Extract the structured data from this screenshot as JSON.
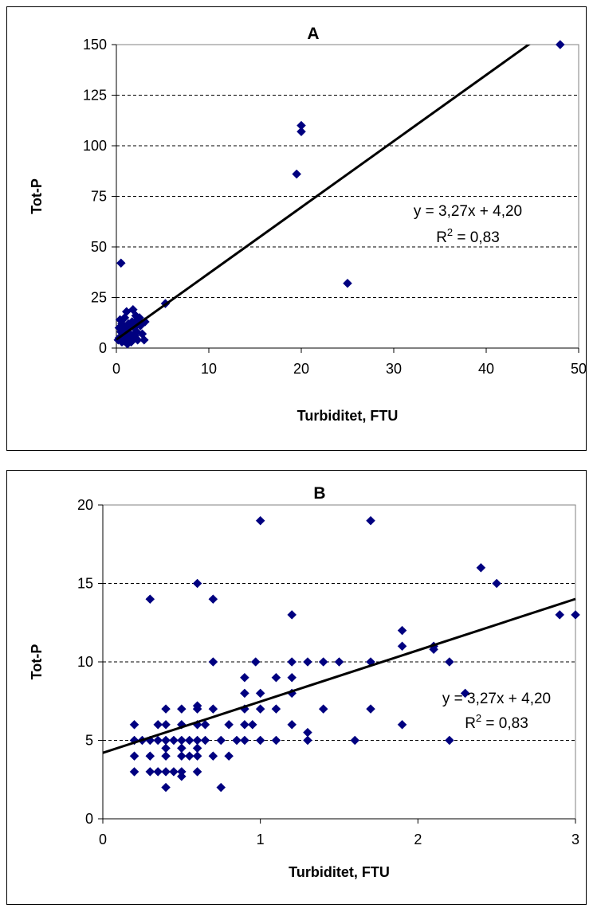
{
  "chart_data": [
    {
      "type": "scatter",
      "title": "A",
      "xlabel": "Turbiditet, FTU",
      "ylabel": "Tot-P",
      "xlim": [
        0,
        50
      ],
      "ylim": [
        0,
        150
      ],
      "xticks": [
        0,
        10,
        20,
        30,
        40,
        50
      ],
      "yticks": [
        0,
        25,
        50,
        75,
        100,
        125,
        150
      ],
      "grid": "horizontal dashed",
      "marker": "diamond",
      "marker_color": "#000080",
      "trendline": {
        "slope": 3.27,
        "intercept": 4.2,
        "equation": "y = 3,27x + 4,20",
        "r2_label": "R",
        "r2_sup": "2",
        "r2_value": " = 0,83"
      },
      "points": [
        [
          48,
          150
        ],
        [
          20,
          110
        ],
        [
          20,
          107
        ],
        [
          19.5,
          86
        ],
        [
          25,
          32
        ],
        [
          0.5,
          42
        ],
        [
          5.3,
          22
        ],
        [
          0.3,
          5
        ],
        [
          0.4,
          14
        ],
        [
          0.5,
          8
        ],
        [
          0.6,
          3
        ],
        [
          0.7,
          11
        ],
        [
          0.8,
          6
        ],
        [
          0.9,
          15
        ],
        [
          1.0,
          4
        ],
        [
          1.1,
          18
        ],
        [
          1.2,
          9
        ],
        [
          1.3,
          12
        ],
        [
          1.4,
          5
        ],
        [
          1.5,
          7
        ],
        [
          1.6,
          3
        ],
        [
          1.7,
          13
        ],
        [
          1.8,
          19
        ],
        [
          1.9,
          10
        ],
        [
          2.0,
          6
        ],
        [
          2.1,
          16
        ],
        [
          2.2,
          8
        ],
        [
          2.3,
          4
        ],
        [
          2.4,
          12
        ],
        [
          2.5,
          15
        ],
        [
          2.6,
          11
        ],
        [
          2.8,
          7
        ],
        [
          3.0,
          4
        ],
        [
          3.1,
          13
        ],
        [
          0.2,
          4
        ],
        [
          0.3,
          10
        ],
        [
          0.6,
          12
        ],
        [
          0.9,
          7
        ],
        [
          1.2,
          2
        ],
        [
          1.5,
          11
        ],
        [
          1.8,
          6
        ],
        [
          2.0,
          13
        ]
      ]
    },
    {
      "type": "scatter",
      "title": "B",
      "xlabel": "Turbiditet, FTU",
      "ylabel": "Tot-P",
      "xlim": [
        0,
        3
      ],
      "ylim": [
        0,
        20
      ],
      "xticks": [
        0,
        1,
        2,
        3
      ],
      "yticks": [
        0,
        5,
        10,
        15,
        20
      ],
      "grid": "horizontal dashed",
      "marker": "diamond",
      "marker_color": "#000080",
      "trendline": {
        "slope": 3.27,
        "intercept": 4.2,
        "equation": "y = 3,27x + 4,20",
        "r2_label": "R",
        "r2_sup": "2",
        "r2_value": " = 0,83"
      },
      "points": [
        [
          0.2,
          6
        ],
        [
          0.2,
          5
        ],
        [
          0.2,
          4
        ],
        [
          0.2,
          3
        ],
        [
          0.25,
          5
        ],
        [
          0.3,
          14
        ],
        [
          0.3,
          5
        ],
        [
          0.3,
          4
        ],
        [
          0.3,
          3
        ],
        [
          0.35,
          6
        ],
        [
          0.35,
          5
        ],
        [
          0.35,
          3
        ],
        [
          0.4,
          7
        ],
        [
          0.4,
          6
        ],
        [
          0.4,
          5
        ],
        [
          0.4,
          4.5
        ],
        [
          0.4,
          4
        ],
        [
          0.4,
          3
        ],
        [
          0.4,
          2
        ],
        [
          0.45,
          5
        ],
        [
          0.45,
          3
        ],
        [
          0.5,
          7
        ],
        [
          0.5,
          6
        ],
        [
          0.5,
          5
        ],
        [
          0.5,
          4.5
        ],
        [
          0.5,
          4
        ],
        [
          0.5,
          3
        ],
        [
          0.5,
          2.7
        ],
        [
          0.55,
          5
        ],
        [
          0.55,
          4
        ],
        [
          0.6,
          15
        ],
        [
          0.6,
          7.2
        ],
        [
          0.6,
          7
        ],
        [
          0.6,
          6
        ],
        [
          0.6,
          5
        ],
        [
          0.6,
          4.5
        ],
        [
          0.6,
          4
        ],
        [
          0.6,
          3
        ],
        [
          0.65,
          6
        ],
        [
          0.65,
          5
        ],
        [
          0.7,
          14
        ],
        [
          0.7,
          10
        ],
        [
          0.7,
          7
        ],
        [
          0.7,
          4
        ],
        [
          0.75,
          5
        ],
        [
          0.75,
          2
        ],
        [
          0.8,
          6
        ],
        [
          0.8,
          4
        ],
        [
          0.85,
          5
        ],
        [
          0.9,
          9
        ],
        [
          0.9,
          8
        ],
        [
          0.9,
          7
        ],
        [
          0.9,
          6
        ],
        [
          0.9,
          5
        ],
        [
          0.95,
          6
        ],
        [
          0.97,
          10
        ],
        [
          1.0,
          19
        ],
        [
          1.0,
          8
        ],
        [
          1.0,
          7
        ],
        [
          1.0,
          5
        ],
        [
          1.1,
          9
        ],
        [
          1.1,
          7
        ],
        [
          1.1,
          5
        ],
        [
          1.2,
          13
        ],
        [
          1.2,
          10
        ],
        [
          1.2,
          9
        ],
        [
          1.2,
          8
        ],
        [
          1.2,
          6
        ],
        [
          1.3,
          10
        ],
        [
          1.3,
          5.5
        ],
        [
          1.3,
          5
        ],
        [
          1.4,
          10
        ],
        [
          1.4,
          7
        ],
        [
          1.5,
          10
        ],
        [
          1.6,
          5
        ],
        [
          1.7,
          19
        ],
        [
          1.7,
          10
        ],
        [
          1.7,
          7
        ],
        [
          1.9,
          12
        ],
        [
          1.9,
          11
        ],
        [
          1.9,
          6
        ],
        [
          2.1,
          11
        ],
        [
          2.1,
          10.8
        ],
        [
          2.2,
          10
        ],
        [
          2.2,
          5
        ],
        [
          2.3,
          8
        ],
        [
          2.4,
          16
        ],
        [
          2.5,
          15
        ],
        [
          2.9,
          13
        ],
        [
          3.0,
          13
        ]
      ]
    }
  ]
}
